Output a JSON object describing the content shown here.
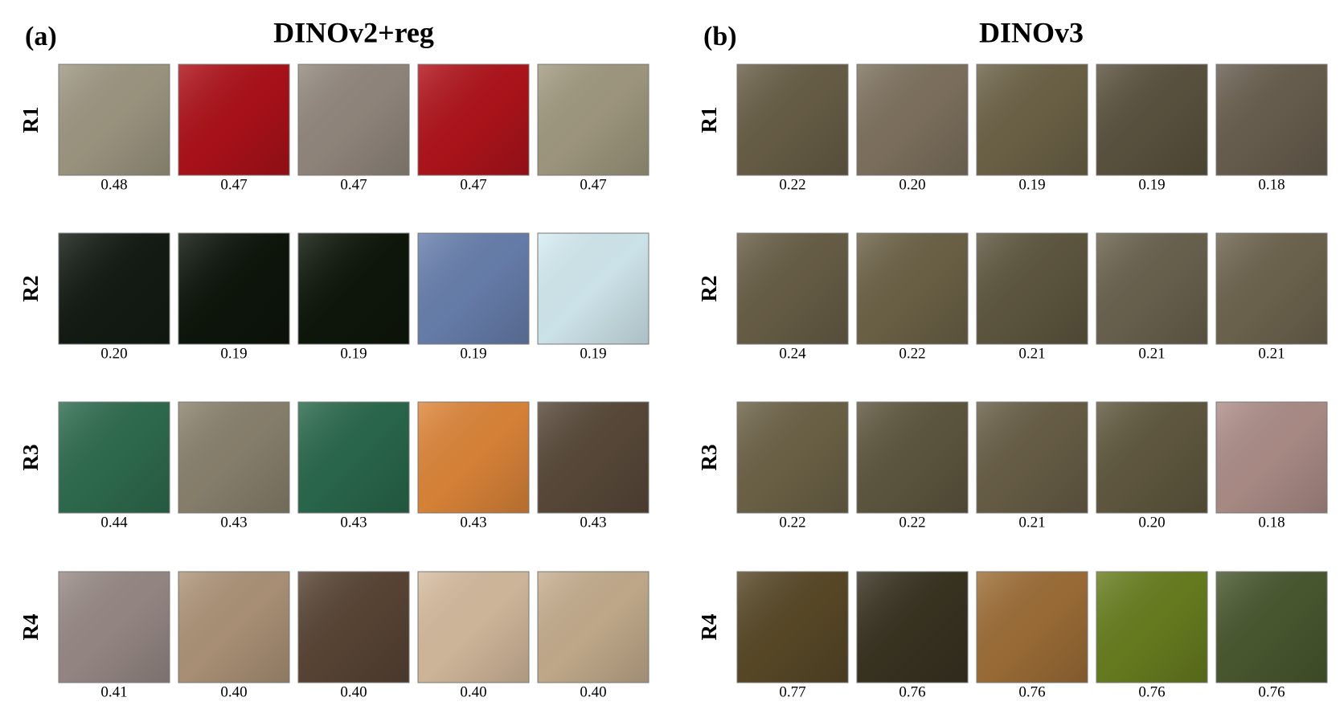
{
  "panels": [
    {
      "label": "(a)",
      "title": "DINOv2+reg",
      "rows": [
        {
          "label": "R1",
          "patches": [
            {
              "score": "0.48",
              "color": "#a09a84"
            },
            {
              "score": "0.47",
              "color": "#b0121a"
            },
            {
              "score": "0.47",
              "color": "#958a80"
            },
            {
              "score": "0.47",
              "color": "#b3141c"
            },
            {
              "score": "0.47",
              "color": "#a49c82"
            }
          ]
        },
        {
          "label": "R2",
          "patches": [
            {
              "score": "0.20",
              "color": "#141c14"
            },
            {
              "score": "0.19",
              "color": "#0e160c"
            },
            {
              "score": "0.19",
              "color": "#0f170b"
            },
            {
              "score": "0.19",
              "color": "#6a82b0"
            },
            {
              "score": "0.19",
              "color": "#d6eef4"
            }
          ]
        },
        {
          "label": "R3",
          "patches": [
            {
              "score": "0.44",
              "color": "#2f6e50"
            },
            {
              "score": "0.43",
              "color": "#8c8470"
            },
            {
              "score": "0.43",
              "color": "#2a6a4e"
            },
            {
              "score": "0.43",
              "color": "#e0883a"
            },
            {
              "score": "0.43",
              "color": "#5a4a3a"
            }
          ]
        },
        {
          "label": "R4",
          "patches": [
            {
              "score": "0.41",
              "color": "#9a8c88"
            },
            {
              "score": "0.40",
              "color": "#b0967a"
            },
            {
              "score": "0.40",
              "color": "#5a4636"
            },
            {
              "score": "0.40",
              "color": "#d8bea0"
            },
            {
              "score": "0.40",
              "color": "#c8b090"
            }
          ]
        }
      ]
    },
    {
      "label": "(b)",
      "title": "DINOv3",
      "rows": [
        {
          "label": "R1",
          "patches": [
            {
              "score": "0.22",
              "color": "#6a6048"
            },
            {
              "score": "0.20",
              "color": "#807460"
            },
            {
              "score": "0.19",
              "color": "#6e6448"
            },
            {
              "score": "0.19",
              "color": "#5c5440"
            },
            {
              "score": "0.18",
              "color": "#6a6050"
            }
          ]
        },
        {
          "label": "R2",
          "patches": [
            {
              "score": "0.24",
              "color": "#6a6048"
            },
            {
              "score": "0.22",
              "color": "#6e6448"
            },
            {
              "score": "0.21",
              "color": "#605840"
            },
            {
              "score": "0.21",
              "color": "#6c6450"
            },
            {
              "score": "0.21",
              "color": "#706650"
            }
          ]
        },
        {
          "label": "R3",
          "patches": [
            {
              "score": "0.22",
              "color": "#6e6448"
            },
            {
              "score": "0.22",
              "color": "#605840"
            },
            {
              "score": "0.21",
              "color": "#6a6048"
            },
            {
              "score": "0.20",
              "color": "#625a40"
            },
            {
              "score": "0.18",
              "color": "#b0908a"
            }
          ]
        },
        {
          "label": "R4",
          "patches": [
            {
              "score": "0.77",
              "color": "#5a4a28"
            },
            {
              "score": "0.76",
              "color": "#3a3422"
            },
            {
              "score": "0.76",
              "color": "#a07038"
            },
            {
              "score": "0.76",
              "color": "#6a8020"
            },
            {
              "score": "0.76",
              "color": "#4a5a30"
            }
          ]
        }
      ]
    }
  ]
}
